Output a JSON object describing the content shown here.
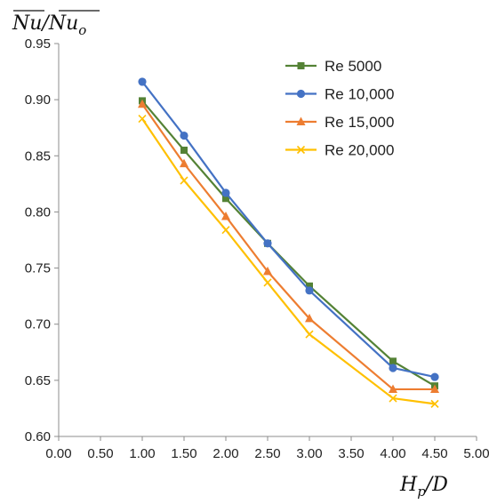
{
  "chart_data": {
    "type": "line",
    "ylabel": {
      "base": "Nu",
      "slash": "/",
      "denom": "Nu",
      "sub": "o"
    },
    "xlabel": {
      "base": "H",
      "sub": "p",
      "slash": "/",
      "denom": "D"
    },
    "xlim": [
      0,
      5
    ],
    "ylim": [
      0.6,
      0.95
    ],
    "xticks": [
      "0.00",
      "0.50",
      "1.00",
      "1.50",
      "2.00",
      "2.50",
      "3.00",
      "3.50",
      "4.00",
      "4.50",
      "5.00"
    ],
    "yticks": [
      "0.60",
      "0.65",
      "0.70",
      "0.75",
      "0.80",
      "0.85",
      "0.90",
      "0.95"
    ],
    "grid": false,
    "legend_position": "top-right",
    "x": [
      1.0,
      1.5,
      2.0,
      2.5,
      3.0,
      4.0,
      4.5
    ],
    "series": [
      {
        "name": "Re 5000",
        "color": "#548235",
        "marker": "square",
        "values": [
          0.899,
          0.855,
          0.812,
          0.772,
          0.734,
          0.667,
          0.645
        ]
      },
      {
        "name": "Re 10,000",
        "color": "#4472C4",
        "marker": "circle",
        "values": [
          0.916,
          0.868,
          0.817,
          0.772,
          0.73,
          0.661,
          0.653
        ]
      },
      {
        "name": "Re 15,000",
        "color": "#ED7D31",
        "marker": "triangle",
        "values": [
          0.896,
          0.843,
          0.796,
          0.747,
          0.705,
          0.642,
          0.642
        ]
      },
      {
        "name": "Re 20,000",
        "color": "#FFC000",
        "marker": "x",
        "values": [
          0.883,
          0.828,
          0.784,
          0.737,
          0.691,
          0.634,
          0.629
        ]
      }
    ]
  }
}
